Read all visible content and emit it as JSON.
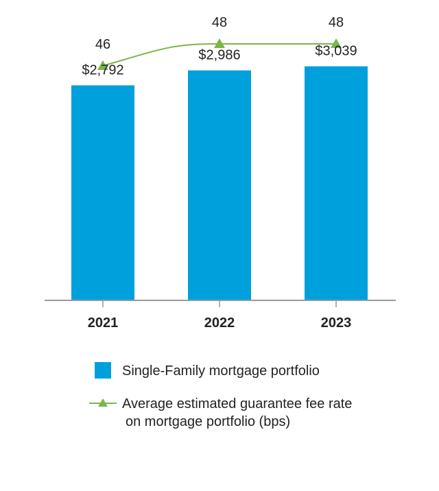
{
  "chart_data": {
    "type": "bar",
    "categories": [
      "2021",
      "2022",
      "2023"
    ],
    "series": [
      {
        "name": "Single-Family mortgage portfolio",
        "type": "bar",
        "values": [
          2792,
          2986,
          3039
        ],
        "value_labels": [
          "$2,792",
          "$2,986",
          "$3,039"
        ],
        "color": "#00a0dc"
      },
      {
        "name": "Average estimated guarantee fee rate on mortgage portfolio (bps)",
        "type": "line",
        "marker": "triangle",
        "values": [
          46,
          48,
          48
        ],
        "value_labels": [
          "46",
          "48",
          "48"
        ],
        "color": "#7ab648"
      }
    ],
    "bar_ylim": [
      0,
      3250
    ],
    "line_ylim": [
      42,
      49.25
    ],
    "axis_color": "#999999"
  },
  "legend": {
    "bar_label": "Single-Family mortgage portfolio",
    "line_label_line1": "Average estimated guarantee fee rate",
    "line_label_line2": "on mortgage portfolio (bps)"
  }
}
